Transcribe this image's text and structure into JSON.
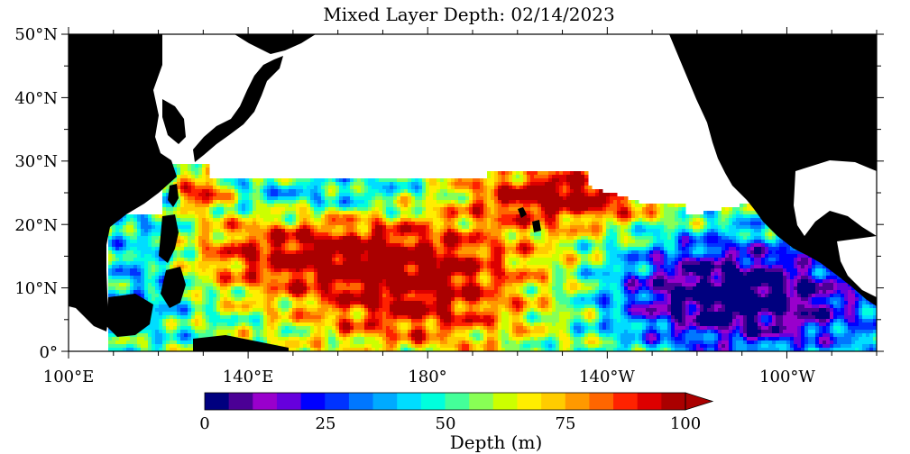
{
  "map": {
    "title": "Mixed Layer Depth: 02/14/2023",
    "lat_labels": [
      "0°",
      "10°N",
      "20°N",
      "30°N",
      "40°N",
      "50°N"
    ],
    "lon_labels": [
      "100°E",
      "140°E",
      "180°",
      "140°W",
      "100°W"
    ],
    "extent": {
      "lon_min": 100,
      "lon_max": 280,
      "lat_min": 0,
      "lat_max": 50
    },
    "colors": {
      "land": "#000000",
      "no_data": "#ffffff",
      "frame": "#000000"
    }
  },
  "colorbar": {
    "label": "Depth (m)",
    "tick_labels": [
      "0",
      "25",
      "50",
      "75",
      "100"
    ],
    "ticks": [
      0,
      25,
      50,
      75,
      100
    ],
    "range": [
      0,
      100
    ],
    "step": 5,
    "extend": "max",
    "colors": [
      "#00007f",
      "#4b0095",
      "#9900cc",
      "#6600dd",
      "#0000ff",
      "#0033ff",
      "#0077ff",
      "#00aaff",
      "#00ddff",
      "#00ffdd",
      "#44ff99",
      "#88ff55",
      "#ccff00",
      "#ffee00",
      "#ffcc00",
      "#ff9900",
      "#ff6600",
      "#ff2200",
      "#dd0000",
      "#aa0000"
    ]
  }
}
